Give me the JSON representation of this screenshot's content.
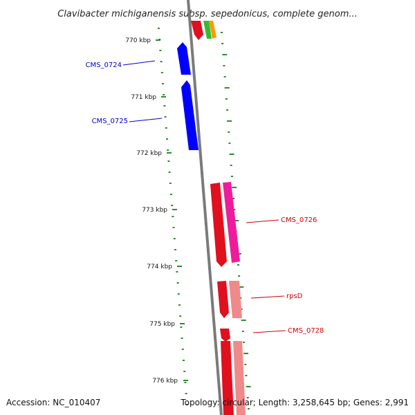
{
  "title": "Clavibacter michiganensis subsp. sepedonicus, complete genom...",
  "footer": {
    "accession": "Accession: NC_010407",
    "summary": "Topology: circular; Length: 3,258,645 bp; Genes: 2,991"
  },
  "ticks": [
    {
      "label": "770 kbp",
      "position_kbp": 770
    },
    {
      "label": "771 kbp",
      "position_kbp": 771
    },
    {
      "label": "772 kbp",
      "position_kbp": 772
    },
    {
      "label": "773 kbp",
      "position_kbp": 773
    },
    {
      "label": "774 kbp",
      "position_kbp": 774
    },
    {
      "label": "775 kbp",
      "position_kbp": 775
    },
    {
      "label": "776 kbp",
      "position_kbp": 776
    }
  ],
  "genes": [
    {
      "name": "CMS_0724",
      "strand": "reverse",
      "color": "#0000ff"
    },
    {
      "name": "CMS_0725",
      "strand": "reverse",
      "color": "#0000ff"
    },
    {
      "name": "CMS_0726",
      "strand": "forward",
      "color": "#e0101f"
    },
    {
      "name": "rpsD",
      "strand": "forward",
      "color": "#e0101f"
    },
    {
      "name": "CMS_0728",
      "strand": "forward",
      "color": "#e0101f"
    }
  ],
  "colors": {
    "backbone": "#7a7a7a",
    "gc_skew": "#2e8b2e",
    "reverse_gene": "#0000ff",
    "forward_gene": "#e0101f",
    "forward_gene_product": "#ee1c9c",
    "forward_gene_product_light": "#f08a8a",
    "other_gene_orange": "#ff9900",
    "other_gene_green": "#33bb33"
  }
}
